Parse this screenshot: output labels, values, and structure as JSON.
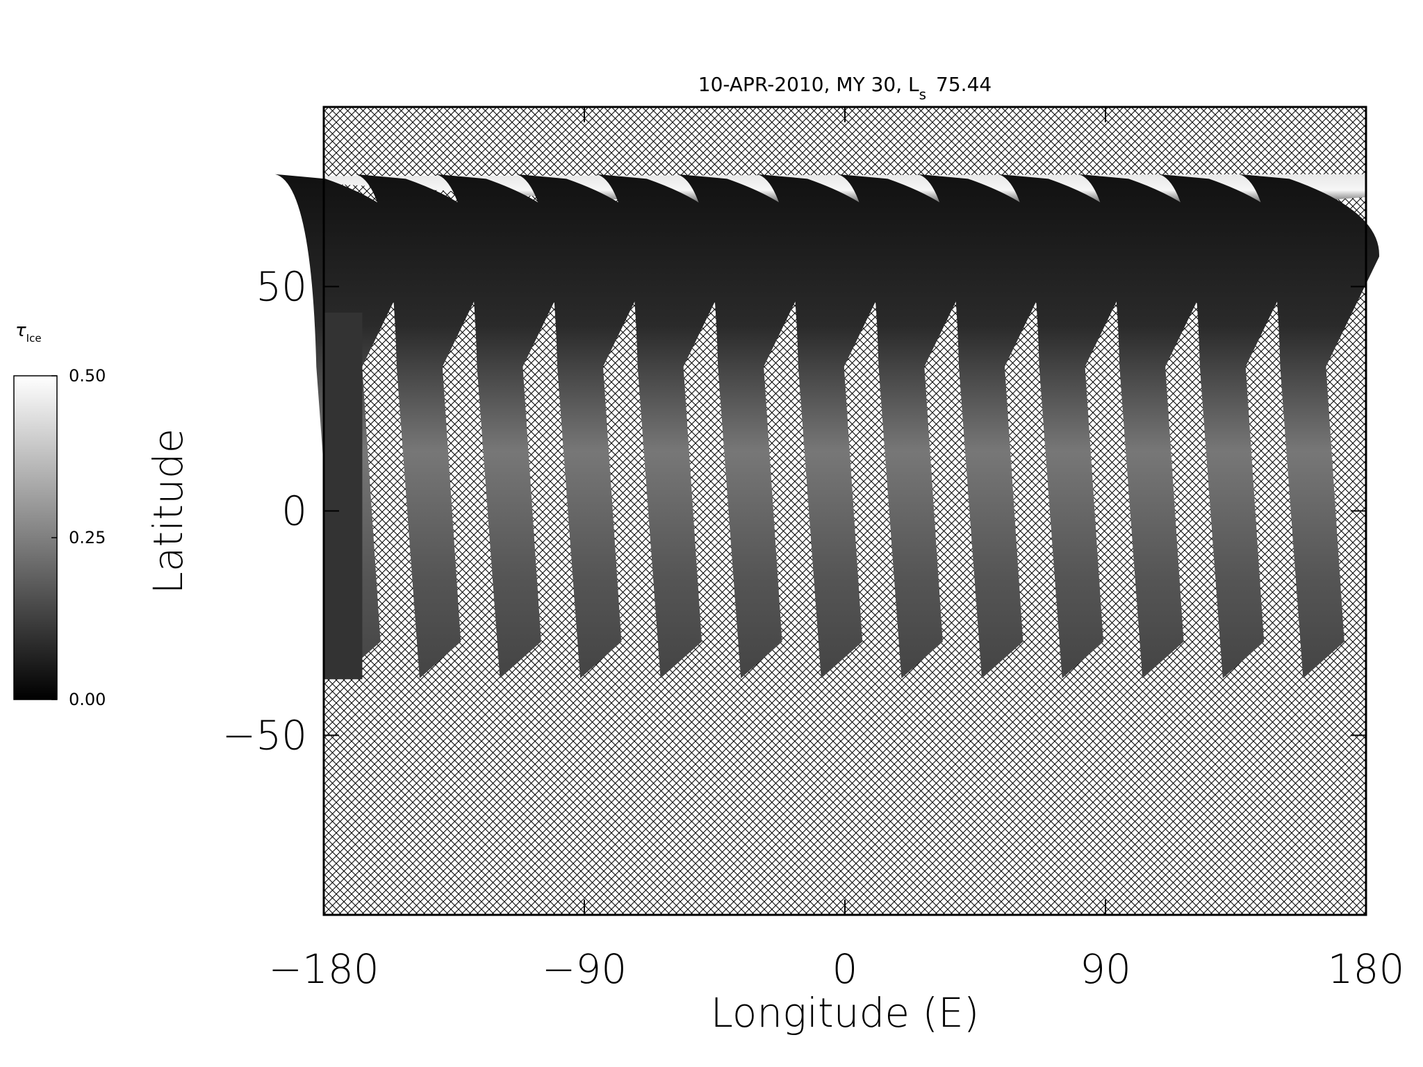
{
  "chart_data": {
    "type": "map",
    "title": "10-APR-2010, MY 30,  L",
    "title_subscript": "s",
    "title_suffix": "75.44",
    "xlabel": "Longitude (E)",
    "ylabel": "Latitude",
    "xlim": [
      -180,
      180
    ],
    "ylim": [
      -90,
      90
    ],
    "xticks": [
      {
        "value": -180,
        "label": "−180"
      },
      {
        "value": -90,
        "label": "−90"
      },
      0,
      90,
      180
    ],
    "yticks": [
      {
        "value": -50,
        "label": "−50"
      },
      0,
      50
    ],
    "colorbar": {
      "label": "τ",
      "label_subscript": "Ice",
      "lim": [
        0,
        0.5
      ],
      "colors": [
        "#000000",
        "#ffffff"
      ],
      "ticks": [
        {
          "value": 0,
          "label": "0.00"
        },
        {
          "value": 0.25,
          "label": "0.25"
        },
        {
          "value": 0.5,
          "label": "0.50"
        }
      ]
    }
  }
}
